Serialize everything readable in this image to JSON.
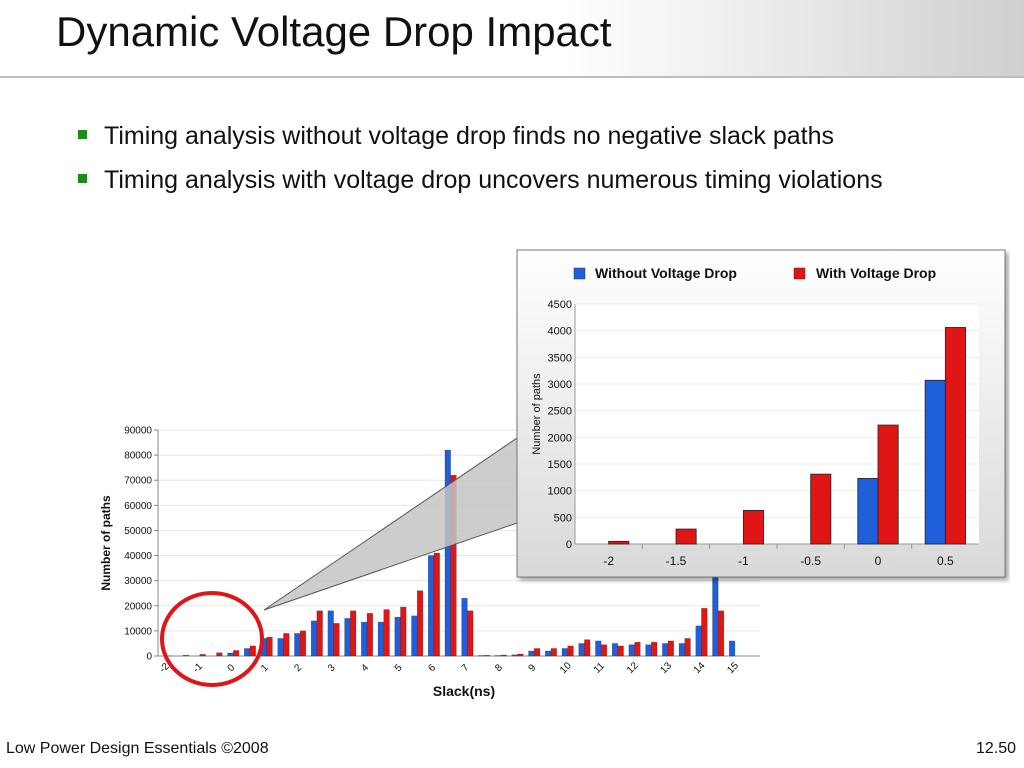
{
  "slide": {
    "title": "Dynamic Voltage Drop Impact",
    "bullets": [
      "Timing analysis without voltage drop finds no negative slack paths",
      "Timing analysis with voltage drop uncovers numerous timing violations"
    ],
    "footer_left": "Low Power Design Essentials ©2008",
    "footer_right": "12.50"
  },
  "colors": {
    "without": "#1f5fd9",
    "with": "#e01515",
    "highlight_circle": "#e01515",
    "bullet": "#1a8c1a"
  },
  "chart_data": [
    {
      "type": "bar",
      "title": "",
      "xlabel": "Slack(ns)",
      "ylabel": "Number of paths",
      "ylim": [
        0,
        90000
      ],
      "yticks": [
        0,
        10000,
        20000,
        30000,
        40000,
        50000,
        60000,
        70000,
        80000,
        90000
      ],
      "x": [
        -2,
        -1.5,
        -1,
        -0.5,
        0,
        0.5,
        1,
        1.5,
        2,
        2.5,
        3,
        3.5,
        4,
        4.5,
        5,
        5.5,
        6,
        6.5,
        7,
        7.5,
        8,
        8.5,
        9,
        9.5,
        10,
        10.5,
        11,
        11.5,
        12,
        12.5,
        13,
        13.5,
        14,
        14.5,
        15
      ],
      "xtick_labels": [
        "-2",
        "-1",
        "0",
        "1",
        "2",
        "3",
        "4",
        "5",
        "6",
        "7",
        "8",
        "9",
        "10",
        "11",
        "12",
        "13",
        "14",
        "15"
      ],
      "series": [
        {
          "values": [
            0,
            0,
            0,
            0,
            1200,
            3000,
            7000,
            7000,
            9000,
            14000,
            18000,
            15000,
            13500,
            13500,
            15500,
            16000,
            40000,
            82000,
            23000,
            200,
            200,
            500,
            2000,
            2000,
            3000,
            5000,
            6000,
            5000,
            4500,
            4500,
            5000,
            5000,
            12000,
            35000,
            6000
          ]
        },
        {
          "values": [
            50,
            300,
            650,
            1300,
            2200,
            4000,
            7500,
            9000,
            10000,
            18000,
            13000,
            18000,
            17000,
            18500,
            19500,
            26000,
            41000,
            72000,
            18000,
            300,
            400,
            800,
            3000,
            3000,
            4000,
            6500,
            4500,
            4000,
            5500,
            5500,
            6000,
            7000,
            19000,
            18000,
            0
          ]
        }
      ]
    },
    {
      "type": "bar",
      "title": "",
      "xlabel": "",
      "ylabel": "Number of paths",
      "ylim": [
        0,
        4500
      ],
      "yticks": [
        0,
        500,
        1000,
        1500,
        2000,
        2500,
        3000,
        3500,
        4000,
        4500
      ],
      "categories": [
        "-2",
        "-1.5",
        "-1",
        "-0.5",
        "0",
        "0.5"
      ],
      "legend_position": "top",
      "series": [
        {
          "name": "Without Voltage Drop",
          "values": [
            0,
            0,
            0,
            0,
            1230,
            3070
          ]
        },
        {
          "name": "With Voltage Drop",
          "values": [
            50,
            280,
            630,
            1310,
            2230,
            4060
          ]
        }
      ]
    }
  ]
}
